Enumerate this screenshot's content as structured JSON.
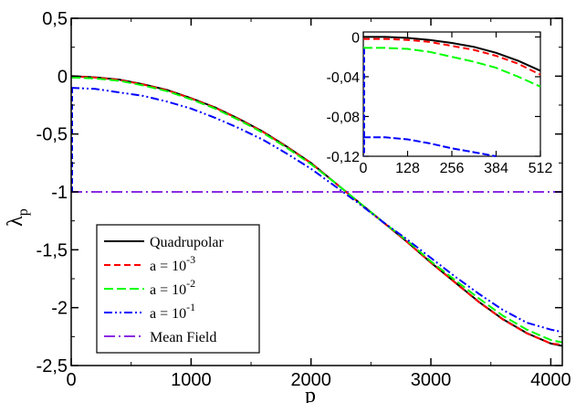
{
  "chart_data": {
    "type": "line",
    "xlabel": "p",
    "ylabel": "λ",
    "ylabel_sub": "p",
    "xlim": [
      0,
      4096
    ],
    "ylim": [
      -2.5,
      0.5
    ],
    "xticks": [
      0,
      1000,
      2000,
      3000,
      4000
    ],
    "xtick_labels": [
      "0",
      "1000",
      "2000",
      "3000",
      "4000"
    ],
    "yticks": [
      0.5,
      0,
      -0.5,
      -1,
      -1.5,
      -2,
      -2.5
    ],
    "ytick_labels": [
      "0,5",
      "0",
      "-0,5",
      "-1",
      "-1,5",
      "-2",
      "-2,5"
    ],
    "legend": {
      "placement": "bottom-left",
      "entries": [
        {
          "text": "Quadrupolar",
          "base": "",
          "exp": ""
        },
        {
          "text": "",
          "base": "a = 10",
          "exp": "-3"
        },
        {
          "text": "",
          "base": "a = 10",
          "exp": "-2"
        },
        {
          "text": "",
          "base": "a = 10",
          "exp": "-1"
        },
        {
          "text": "Mean Field",
          "base": "",
          "exp": ""
        }
      ]
    },
    "series": [
      {
        "key": "quadrupolar",
        "color": "#000000",
        "dash": "",
        "x": [
          0,
          200,
          400,
          600,
          800,
          1000,
          1200,
          1400,
          1600,
          1800,
          2000,
          2200,
          2400,
          2600,
          2800,
          3000,
          3200,
          3400,
          3600,
          3800,
          4000,
          4096
        ],
        "y": [
          0,
          -0.01,
          -0.03,
          -0.07,
          -0.12,
          -0.19,
          -0.27,
          -0.37,
          -0.48,
          -0.61,
          -0.75,
          -0.92,
          -1.09,
          -1.26,
          -1.43,
          -1.61,
          -1.78,
          -1.95,
          -2.1,
          -2.22,
          -2.31,
          -2.33
        ]
      },
      {
        "key": "a3",
        "color": "#ff0000",
        "dash": "7,4",
        "x": [
          0,
          200,
          400,
          600,
          800,
          1000,
          1200,
          1400,
          1600,
          1800,
          2000,
          2200,
          2400,
          2600,
          2800,
          3000,
          3200,
          3400,
          3600,
          3800,
          4000,
          4096
        ],
        "y": [
          -0.002,
          -0.012,
          -0.032,
          -0.072,
          -0.122,
          -0.192,
          -0.272,
          -0.372,
          -0.482,
          -0.612,
          -0.752,
          -0.922,
          -1.092,
          -1.262,
          -1.432,
          -1.612,
          -1.782,
          -1.952,
          -2.102,
          -2.222,
          -2.31,
          -2.32
        ]
      },
      {
        "key": "a2",
        "color": "#00ff00",
        "dash": "10,4",
        "x": [
          0,
          200,
          400,
          600,
          800,
          1000,
          1200,
          1400,
          1600,
          1800,
          2000,
          2200,
          2400,
          2600,
          2800,
          3000,
          3200,
          3400,
          3600,
          3800,
          4000,
          4096
        ],
        "y": [
          -0.011,
          -0.02,
          -0.04,
          -0.08,
          -0.13,
          -0.2,
          -0.28,
          -0.38,
          -0.49,
          -0.62,
          -0.76,
          -0.92,
          -1.09,
          -1.26,
          -1.42,
          -1.6,
          -1.76,
          -1.92,
          -2.07,
          -2.19,
          -2.28,
          -2.3
        ]
      },
      {
        "key": "a1",
        "color": "#0000ff",
        "dash": "9,3,2,3,2,3",
        "x": [
          0,
          200,
          400,
          600,
          800,
          1000,
          1200,
          1400,
          1600,
          1800,
          2000,
          2200,
          2400,
          2600,
          2800,
          3000,
          3200,
          3400,
          3600,
          3800,
          4000,
          4096
        ],
        "y": [
          -0.101,
          -0.11,
          -0.14,
          -0.17,
          -0.22,
          -0.28,
          -0.36,
          -0.45,
          -0.55,
          -0.67,
          -0.8,
          -0.95,
          -1.1,
          -1.26,
          -1.41,
          -1.57,
          -1.73,
          -1.88,
          -2.02,
          -2.13,
          -2.19,
          -2.21
        ]
      },
      {
        "key": "mean-field",
        "color": "#8a2be2",
        "dash": "12,4,2,4",
        "x": [
          0,
          4096
        ],
        "y": [
          -1,
          -1
        ]
      }
    ],
    "inset": {
      "xlim": [
        0,
        512
      ],
      "ylim": [
        -0.12,
        0.005
      ],
      "xticks": [
        0,
        128,
        256,
        384,
        512
      ],
      "xtick_labels": [
        "0",
        "128",
        "256",
        "384",
        "512"
      ],
      "yticks": [
        0,
        -0.04,
        -0.08,
        -0.12
      ],
      "ytick_labels": [
        "0",
        "-0,04",
        "-0,08",
        "-0,12"
      ],
      "series": [
        {
          "key": "quadrupolar",
          "x": [
            0,
            64,
            128,
            192,
            256,
            320,
            384,
            448,
            512
          ],
          "y": [
            0,
            0,
            -0.001,
            -0.003,
            -0.006,
            -0.01,
            -0.016,
            -0.024,
            -0.034
          ]
        },
        {
          "key": "a3",
          "x": [
            0,
            64,
            128,
            192,
            256,
            320,
            384,
            448,
            512
          ],
          "y": [
            -0.002,
            -0.002,
            -0.003,
            -0.005,
            -0.009,
            -0.013,
            -0.019,
            -0.027,
            -0.038
          ]
        },
        {
          "key": "a2",
          "x": [
            0,
            64,
            128,
            192,
            256,
            320,
            384,
            448,
            512
          ],
          "y": [
            -0.011,
            -0.011,
            -0.012,
            -0.015,
            -0.02,
            -0.025,
            -0.031,
            -0.04,
            -0.05
          ]
        },
        {
          "key": "a1",
          "x": [
            0,
            64,
            128,
            192,
            256,
            320,
            384
          ],
          "y": [
            -0.101,
            -0.101,
            -0.103,
            -0.107,
            -0.112,
            -0.116,
            -0.12
          ]
        }
      ]
    }
  }
}
